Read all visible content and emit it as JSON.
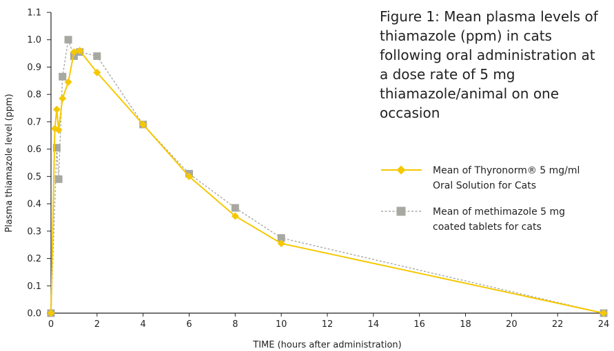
{
  "chart_data": {
    "type": "line",
    "title": "Figure 1: Mean plasma levels of thiamazole (ppm) in cats following oral administration at a dose rate of 5 mg thiamazole/animal on one occasion",
    "xlabel": "TIME (hours after administration)",
    "ylabel": "Plasma thiamazole level (ppm)",
    "xlim": [
      0,
      24
    ],
    "ylim": [
      0,
      1.1
    ],
    "xticks": [
      0,
      2,
      4,
      6,
      8,
      10,
      12,
      14,
      16,
      18,
      20,
      22,
      24
    ],
    "yticks": [
      0.0,
      0.1,
      0.2,
      0.3,
      0.4,
      0.5,
      0.6,
      0.7,
      0.8,
      0.9,
      1.0,
      1.1
    ],
    "ytick_labels": [
      "0.0",
      "0.1",
      "0.2",
      "0.3",
      "0.4",
      "0.5",
      "0.6",
      "0.7",
      "0.8",
      "0.9",
      "1.0",
      "1.1"
    ],
    "xtick_labels": [
      "0",
      "2",
      "4",
      "6",
      "8",
      "10",
      "12",
      "14",
      "16",
      "18",
      "20",
      "22",
      "24"
    ],
    "grid": false,
    "legend_position": "right",
    "series": [
      {
        "name": "Mean of Thyronorm® 5 mg/ml Oral Solution for Cats",
        "legend_lines": [
          "Mean of Thyronorm® 5 mg/ml",
          "Oral Solution for Cats"
        ],
        "color": "#f5c800",
        "line_style": "solid",
        "marker": "diamond",
        "x": [
          0,
          0.167,
          0.25,
          0.333,
          0.5,
          0.75,
          1,
          1.25,
          2,
          4,
          6,
          8,
          10,
          24
        ],
        "y": [
          0.0,
          0.675,
          0.745,
          0.67,
          0.785,
          0.845,
          0.955,
          0.96,
          0.88,
          0.69,
          0.5,
          0.355,
          0.255,
          0.0
        ]
      },
      {
        "name": "Mean of methimazole 5 mg coated tablets for cats",
        "legend_lines": [
          "Mean of methimazole 5 mg",
          "coated tablets for cats"
        ],
        "color": "#a8a8a2",
        "line_style": "dashed",
        "marker": "square",
        "x": [
          0,
          0.25,
          0.333,
          0.5,
          0.75,
          1,
          1.25,
          2,
          4,
          6,
          8,
          10,
          24
        ],
        "y": [
          0.0,
          0.605,
          0.49,
          0.865,
          1.0,
          0.94,
          0.955,
          0.94,
          0.69,
          0.51,
          0.385,
          0.275,
          0.0
        ]
      }
    ]
  }
}
